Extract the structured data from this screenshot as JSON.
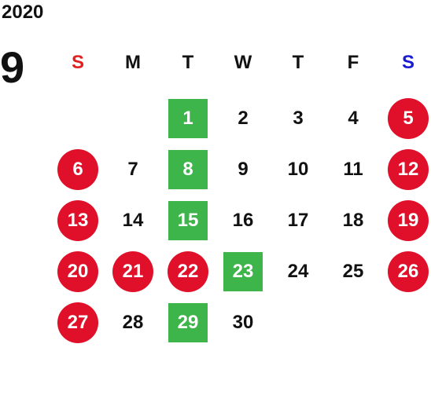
{
  "calendar": {
    "year": "2020",
    "month": "9",
    "weekdays": [
      {
        "label": "S",
        "kind": "sun"
      },
      {
        "label": "M",
        "kind": ""
      },
      {
        "label": "T",
        "kind": ""
      },
      {
        "label": "W",
        "kind": ""
      },
      {
        "label": "T",
        "kind": ""
      },
      {
        "label": "F",
        "kind": ""
      },
      {
        "label": "S",
        "kind": "sat"
      }
    ],
    "colors": {
      "holiday": "#e0102a",
      "special": "#3db54a",
      "sunday_label": "#e02020",
      "saturday_label": "#1a1ad6"
    },
    "weeks": [
      [
        {
          "day": "",
          "style": ""
        },
        {
          "day": "",
          "style": ""
        },
        {
          "day": "1",
          "style": "special"
        },
        {
          "day": "2",
          "style": ""
        },
        {
          "day": "3",
          "style": ""
        },
        {
          "day": "4",
          "style": ""
        },
        {
          "day": "5",
          "style": "holiday"
        }
      ],
      [
        {
          "day": "6",
          "style": "holiday"
        },
        {
          "day": "7",
          "style": ""
        },
        {
          "day": "8",
          "style": "special"
        },
        {
          "day": "9",
          "style": ""
        },
        {
          "day": "10",
          "style": ""
        },
        {
          "day": "11",
          "style": ""
        },
        {
          "day": "12",
          "style": "holiday"
        }
      ],
      [
        {
          "day": "13",
          "style": "holiday"
        },
        {
          "day": "14",
          "style": ""
        },
        {
          "day": "15",
          "style": "special"
        },
        {
          "day": "16",
          "style": ""
        },
        {
          "day": "17",
          "style": ""
        },
        {
          "day": "18",
          "style": ""
        },
        {
          "day": "19",
          "style": "holiday"
        }
      ],
      [
        {
          "day": "20",
          "style": "holiday"
        },
        {
          "day": "21",
          "style": "holiday"
        },
        {
          "day": "22",
          "style": "holiday"
        },
        {
          "day": "23",
          "style": "special"
        },
        {
          "day": "24",
          "style": ""
        },
        {
          "day": "25",
          "style": ""
        },
        {
          "day": "26",
          "style": "holiday"
        }
      ],
      [
        {
          "day": "27",
          "style": "holiday"
        },
        {
          "day": "28",
          "style": ""
        },
        {
          "day": "29",
          "style": "special"
        },
        {
          "day": "30",
          "style": ""
        },
        {
          "day": "",
          "style": ""
        },
        {
          "day": "",
          "style": ""
        },
        {
          "day": "",
          "style": ""
        }
      ]
    ]
  }
}
